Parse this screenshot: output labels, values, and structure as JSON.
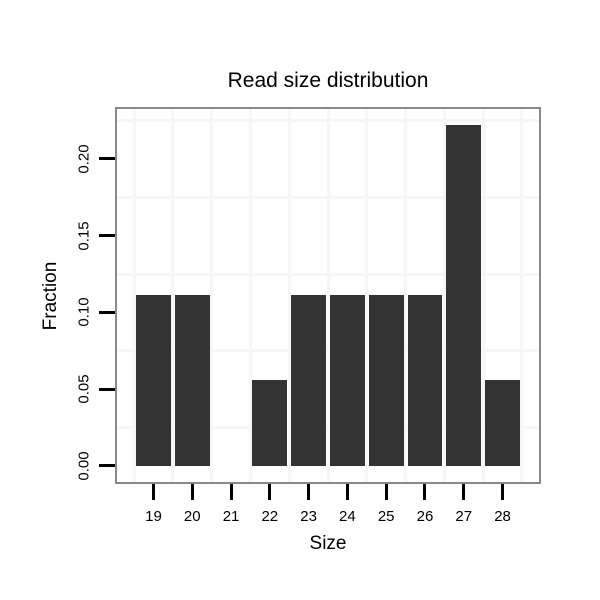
{
  "chart_data": {
    "type": "bar",
    "title": "Read size distribution",
    "xlabel": "Size",
    "ylabel": "Fraction",
    "categories": [
      19,
      20,
      21,
      22,
      23,
      24,
      25,
      26,
      27,
      28
    ],
    "values": [
      0.1111,
      0.1111,
      0,
      0.0556,
      0.1111,
      0.1111,
      0.1111,
      0.1111,
      0.2222,
      0.0556
    ],
    "x_tick_labels": [
      "19",
      "20",
      "21",
      "22",
      "23",
      "24",
      "25",
      "26",
      "27",
      "28"
    ],
    "y_tick_values": [
      0,
      0.05,
      0.1,
      0.15,
      0.2
    ],
    "y_tick_labels": [
      "0.00",
      "0.05",
      "0.10",
      "0.15",
      "0.20"
    ],
    "xlim": [
      18.06,
      28.94
    ],
    "ylim": [
      -0.0106,
      0.2326
    ],
    "bar_width": 0.9,
    "grid": "minor-gridlines-only",
    "minor_x": [
      18.5,
      19.5,
      20.5,
      21.5,
      22.5,
      23.5,
      24.5,
      25.5,
      26.5,
      27.5,
      28.5
    ],
    "minor_y": [
      0.025,
      0.075,
      0.125,
      0.175,
      0.225
    ],
    "legend": "none",
    "colors": {
      "bar_fill": "#333333",
      "panel_border": "#898989",
      "grid_minor": "#f6f6f6",
      "tick": "#000000",
      "text": "#000000",
      "background": "#ffffff"
    }
  }
}
